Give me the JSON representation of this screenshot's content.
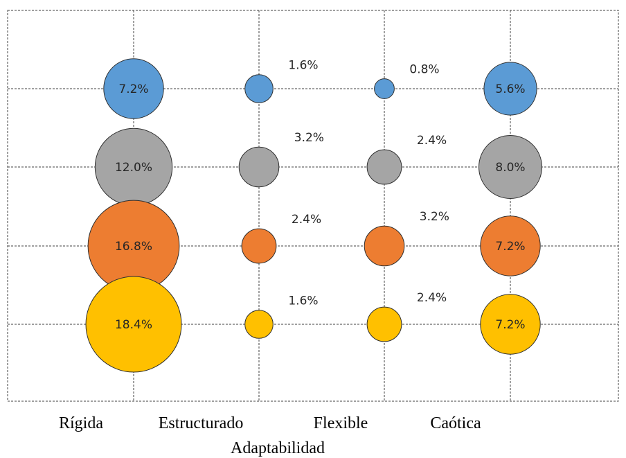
{
  "chart_data": {
    "type": "bubble",
    "xlabel": "Adaptabilidad",
    "ylabel": "",
    "categories": [
      "Rígida",
      "Estructurado",
      "Flexible",
      "Caótica"
    ],
    "series": [
      {
        "color": "#5b9bd5",
        "values": [
          7.2,
          1.6,
          0.8,
          5.6
        ],
        "labels": [
          "7.2%",
          "1.6%",
          "0.8%",
          "5.6%"
        ]
      },
      {
        "color": "#a5a5a5",
        "values": [
          12.0,
          3.2,
          2.4,
          8.0
        ],
        "labels": [
          "12.0%",
          "3.2%",
          "2.4%",
          "8.0%"
        ]
      },
      {
        "color": "#ed7d31",
        "values": [
          16.8,
          2.4,
          3.2,
          7.2
        ],
        "labels": [
          "16.8%",
          "2.4%",
          "3.2%",
          "7.2%"
        ]
      },
      {
        "color": "#ffc000",
        "values": [
          18.4,
          1.6,
          2.4,
          7.2
        ],
        "labels": [
          "18.4%",
          "1.6%",
          "2.4%",
          "7.2%"
        ]
      }
    ],
    "grid": true,
    "legend": "none"
  }
}
